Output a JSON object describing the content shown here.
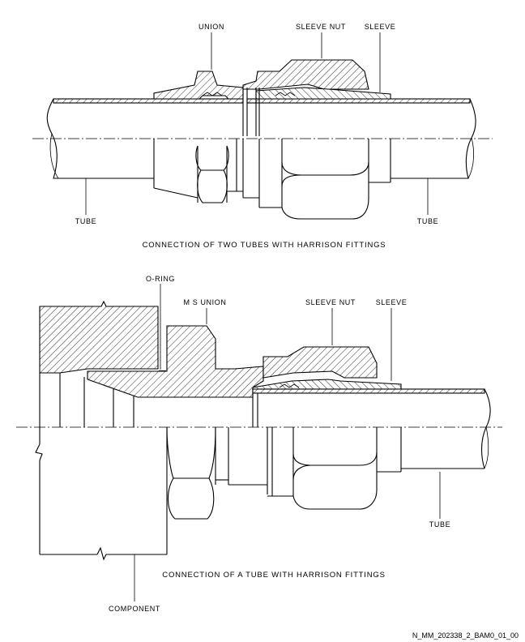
{
  "figure1": {
    "labels": {
      "union": "UNION",
      "sleeve_nut": "SLEEVE NUT",
      "sleeve": "SLEEVE",
      "tube_left": "TUBE",
      "tube_right": "TUBE"
    },
    "caption": "CONNECTION OF TWO TUBES WITH HARRISON FITTINGS"
  },
  "figure2": {
    "labels": {
      "o_ring": "O-RING",
      "ms_union": "M S UNION",
      "sleeve_nut": "SLEEVE NUT",
      "sleeve": "SLEEVE",
      "tube": "TUBE",
      "component": "COMPONENT"
    },
    "caption": "CONNECTION OF A TUBE WITH HARRISON FITTINGS"
  },
  "reference_code": "N_MM_202338_2_BAM0_01_00"
}
